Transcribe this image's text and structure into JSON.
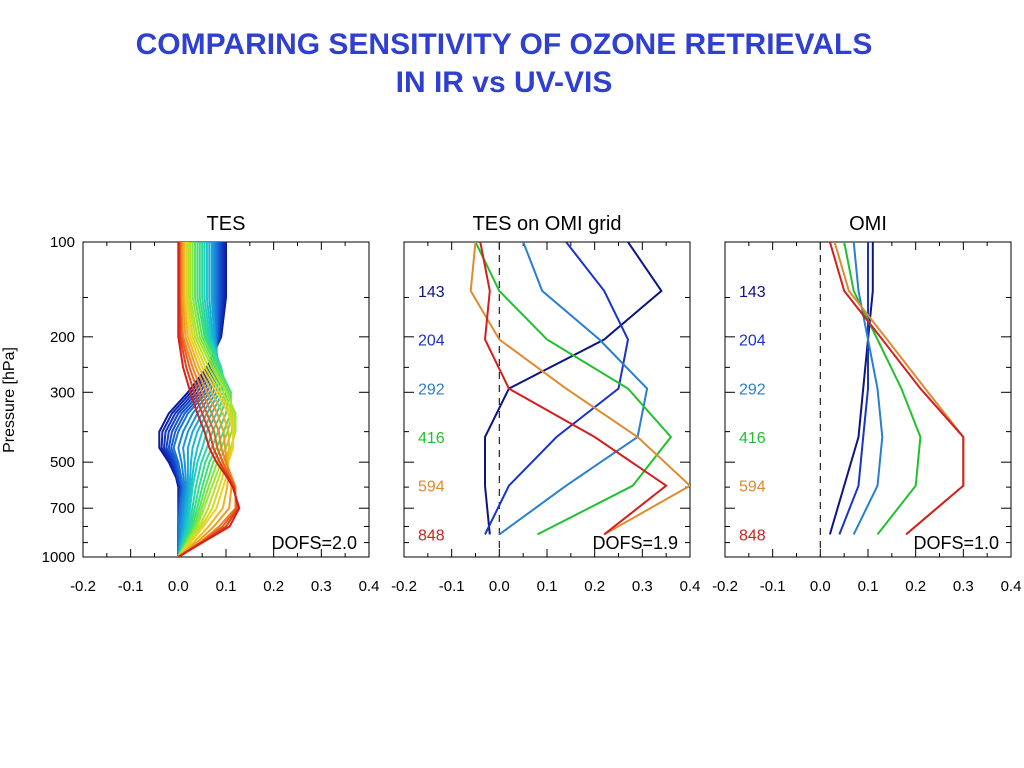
{
  "slide": {
    "title_line1": "COMPARING SENSITIVITY OF OZONE RETRIEVALS",
    "title_line2": "IN IR vs UV-VIS",
    "title_color": "#2f3fd0"
  },
  "ylabel": "Pressure [hPa]",
  "y_tick_labels": [
    "100",
    "200",
    "300",
    "500",
    "700",
    "1000"
  ],
  "chart_data": [
    {
      "type": "line",
      "title": "TES",
      "xlabel": "",
      "ylabel": "Pressure [hPa]",
      "xlim": [
        -0.2,
        0.4
      ],
      "ylim": [
        1000,
        100
      ],
      "y_scale": "log",
      "x_ticks": [
        -0.2,
        -0.1,
        0.0,
        0.1,
        0.2,
        0.3,
        0.4
      ],
      "x_tick_labels": [
        "-0.2",
        "-0.1",
        "0.0",
        "0.1",
        "0.2",
        "0.3",
        "0.4"
      ],
      "y_ticks": [
        100,
        200,
        300,
        500,
        700,
        1000
      ],
      "annotation": "DOFS=2.0",
      "colormap": "rainbow: blue (top levels) to red (surface levels)",
      "series": [
        {
          "color": "#0a1aa0",
          "points": [
            [
              0.1,
              100
            ],
            [
              0.1,
              150
            ],
            [
              0.09,
              200
            ],
            [
              0.06,
              250
            ],
            [
              0.02,
              300
            ],
            [
              -0.02,
              350
            ],
            [
              -0.04,
              400
            ],
            [
              -0.04,
              450
            ],
            [
              -0.02,
              500
            ],
            [
              0.0,
              580
            ],
            [
              0.0,
              700
            ],
            [
              0.0,
              850
            ],
            [
              0.0,
              1000
            ]
          ]
        },
        {
          "color": "#1540c8",
          "points": [
            [
              0.09,
              100
            ],
            [
              0.09,
              150
            ],
            [
              0.085,
              200
            ],
            [
              0.07,
              250
            ],
            [
              0.04,
              300
            ],
            [
              0.0,
              350
            ],
            [
              -0.02,
              400
            ],
            [
              -0.025,
              450
            ],
            [
              -0.01,
              500
            ],
            [
              0.005,
              600
            ],
            [
              0.0,
              750
            ],
            [
              0.0,
              1000
            ]
          ]
        },
        {
          "color": "#1a75d8",
          "points": [
            [
              0.08,
              100
            ],
            [
              0.08,
              150
            ],
            [
              0.08,
              200
            ],
            [
              0.08,
              250
            ],
            [
              0.06,
              300
            ],
            [
              0.02,
              350
            ],
            [
              0.0,
              400
            ],
            [
              -0.01,
              450
            ],
            [
              0.0,
              500
            ],
            [
              0.01,
              600
            ],
            [
              0.0,
              780
            ],
            [
              0.0,
              1000
            ]
          ]
        },
        {
          "color": "#1aa8d8",
          "points": [
            [
              0.07,
              100
            ],
            [
              0.07,
              150
            ],
            [
              0.075,
              200
            ],
            [
              0.085,
              250
            ],
            [
              0.08,
              300
            ],
            [
              0.05,
              350
            ],
            [
              0.03,
              400
            ],
            [
              0.02,
              450
            ],
            [
              0.02,
              500
            ],
            [
              0.02,
              600
            ],
            [
              0.01,
              800
            ],
            [
              0.0,
              1000
            ]
          ]
        },
        {
          "color": "#20d0c0",
          "points": [
            [
              0.055,
              100
            ],
            [
              0.055,
              150
            ],
            [
              0.065,
              200
            ],
            [
              0.09,
              250
            ],
            [
              0.1,
              300
            ],
            [
              0.08,
              350
            ],
            [
              0.06,
              400
            ],
            [
              0.05,
              450
            ],
            [
              0.04,
              500
            ],
            [
              0.03,
              600
            ],
            [
              0.02,
              800
            ],
            [
              0.0,
              1000
            ]
          ]
        },
        {
          "color": "#40e070",
          "points": [
            [
              0.04,
              100
            ],
            [
              0.04,
              150
            ],
            [
              0.055,
              200
            ],
            [
              0.085,
              250
            ],
            [
              0.11,
              300
            ],
            [
              0.11,
              350
            ],
            [
              0.095,
              400
            ],
            [
              0.08,
              450
            ],
            [
              0.065,
              500
            ],
            [
              0.05,
              600
            ],
            [
              0.03,
              800
            ],
            [
              0.0,
              1000
            ]
          ]
        },
        {
          "color": "#a0e830",
          "points": [
            [
              0.025,
              100
            ],
            [
              0.025,
              150
            ],
            [
              0.04,
              200
            ],
            [
              0.07,
              250
            ],
            [
              0.1,
              300
            ],
            [
              0.12,
              350
            ],
            [
              0.12,
              400
            ],
            [
              0.11,
              450
            ],
            [
              0.09,
              500
            ],
            [
              0.07,
              600
            ],
            [
              0.04,
              800
            ],
            [
              0.0,
              1000
            ]
          ]
        },
        {
          "color": "#f0d020",
          "points": [
            [
              0.015,
              100
            ],
            [
              0.015,
              150
            ],
            [
              0.025,
              200
            ],
            [
              0.05,
              250
            ],
            [
              0.08,
              300
            ],
            [
              0.105,
              350
            ],
            [
              0.115,
              400
            ],
            [
              0.115,
              450
            ],
            [
              0.105,
              500
            ],
            [
              0.1,
              560
            ],
            [
              0.08,
              700
            ],
            [
              0.04,
              850
            ],
            [
              0.0,
              1000
            ]
          ]
        },
        {
          "color": "#f08020",
          "points": [
            [
              0.005,
              100
            ],
            [
              0.005,
              150
            ],
            [
              0.01,
              200
            ],
            [
              0.03,
              250
            ],
            [
              0.05,
              300
            ],
            [
              0.07,
              350
            ],
            [
              0.085,
              400
            ],
            [
              0.09,
              450
            ],
            [
              0.1,
              500
            ],
            [
              0.12,
              600
            ],
            [
              0.12,
              700
            ],
            [
              0.07,
              850
            ],
            [
              0.0,
              1000
            ]
          ]
        },
        {
          "color": "#d82018",
          "points": [
            [
              0.0,
              100
            ],
            [
              0.0,
              150
            ],
            [
              0.0,
              200
            ],
            [
              0.01,
              250
            ],
            [
              0.025,
              300
            ],
            [
              0.04,
              350
            ],
            [
              0.055,
              400
            ],
            [
              0.065,
              450
            ],
            [
              0.08,
              500
            ],
            [
              0.11,
              580
            ],
            [
              0.13,
              680
            ],
            [
              0.12,
              780
            ],
            [
              0.05,
              900
            ],
            [
              0.0,
              1000
            ]
          ]
        }
      ]
    },
    {
      "type": "line",
      "title": "TES on OMI grid",
      "xlabel": "",
      "xlim": [
        -0.2,
        0.4
      ],
      "ylim": [
        1000,
        100
      ],
      "y_scale": "log",
      "x_ticks": [
        -0.2,
        -0.1,
        0.0,
        0.1,
        0.2,
        0.3,
        0.4
      ],
      "x_tick_labels": [
        "-0.2",
        "-0.1",
        "0.0",
        "0.1",
        "0.2",
        "0.3",
        "0.4"
      ],
      "y_ticks": [
        100,
        200,
        300,
        500,
        700,
        1000
      ],
      "annotation": "DOFS=1.9",
      "zero_line": "dashed",
      "level_labels": [
        "143",
        "204",
        "292",
        "416",
        "594",
        "848"
      ],
      "level_label_pressures": [
        143,
        204,
        292,
        416,
        594,
        848
      ],
      "series": [
        {
          "name": "143",
          "color": "#0d1580",
          "points": [
            [
              0.27,
              100
            ],
            [
              0.34,
              143
            ],
            [
              0.22,
              204
            ],
            [
              0.02,
              292
            ],
            [
              -0.03,
              416
            ],
            [
              -0.03,
              594
            ],
            [
              -0.02,
              848
            ]
          ]
        },
        {
          "name": "204",
          "color": "#1a33c8",
          "points": [
            [
              0.14,
              100
            ],
            [
              0.22,
              143
            ],
            [
              0.27,
              204
            ],
            [
              0.25,
              292
            ],
            [
              0.12,
              416
            ],
            [
              0.02,
              594
            ],
            [
              -0.03,
              848
            ]
          ]
        },
        {
          "name": "292",
          "color": "#2a7ed0",
          "points": [
            [
              0.05,
              100
            ],
            [
              0.09,
              143
            ],
            [
              0.21,
              204
            ],
            [
              0.31,
              292
            ],
            [
              0.29,
              416
            ],
            [
              0.14,
              594
            ],
            [
              0.0,
              848
            ]
          ]
        },
        {
          "name": "416",
          "color": "#22c030",
          "points": [
            [
              -0.05,
              100
            ],
            [
              0.0,
              143
            ],
            [
              0.1,
              204
            ],
            [
              0.27,
              292
            ],
            [
              0.36,
              416
            ],
            [
              0.28,
              594
            ],
            [
              0.08,
              848
            ]
          ]
        },
        {
          "name": "594",
          "color": "#e08a30",
          "points": [
            [
              -0.05,
              100
            ],
            [
              -0.06,
              143
            ],
            [
              0.0,
              204
            ],
            [
              0.14,
              292
            ],
            [
              0.29,
              416
            ],
            [
              0.4,
              594
            ],
            [
              0.22,
              848
            ]
          ]
        },
        {
          "name": "848",
          "color": "#d02020",
          "points": [
            [
              -0.04,
              100
            ],
            [
              -0.02,
              143
            ],
            [
              -0.03,
              204
            ],
            [
              0.02,
              292
            ],
            [
              0.2,
              416
            ],
            [
              0.35,
              594
            ],
            [
              0.22,
              848
            ]
          ]
        }
      ]
    },
    {
      "type": "line",
      "title": "OMI",
      "xlabel": "",
      "xlim": [
        -0.2,
        0.4
      ],
      "ylim": [
        1000,
        100
      ],
      "y_scale": "log",
      "x_ticks": [
        -0.2,
        -0.1,
        0.0,
        0.1,
        0.2,
        0.3,
        0.4
      ],
      "x_tick_labels": [
        "-0.2",
        "-0.1",
        "0.0",
        "0.1",
        "0.2",
        "0.3",
        "0.4"
      ],
      "y_ticks": [
        100,
        200,
        300,
        500,
        700,
        1000
      ],
      "annotation": "DOFS=1.0",
      "zero_line": "dashed",
      "level_labels": [
        "143",
        "204",
        "292",
        "416",
        "594",
        "848"
      ],
      "level_label_pressures": [
        143,
        204,
        292,
        416,
        594,
        848
      ],
      "series": [
        {
          "name": "143",
          "color": "#0d1580",
          "points": [
            [
              0.11,
              100
            ],
            [
              0.11,
              143
            ],
            [
              0.1,
              204
            ],
            [
              0.09,
              292
            ],
            [
              0.08,
              416
            ],
            [
              0.05,
              594
            ],
            [
              0.02,
              848
            ]
          ]
        },
        {
          "name": "204",
          "color": "#1a33c8",
          "points": [
            [
              0.1,
              100
            ],
            [
              0.1,
              143
            ],
            [
              0.1,
              204
            ],
            [
              0.1,
              292
            ],
            [
              0.09,
              416
            ],
            [
              0.08,
              594
            ],
            [
              0.04,
              848
            ]
          ]
        },
        {
          "name": "292",
          "color": "#2a7ed0",
          "points": [
            [
              0.07,
              100
            ],
            [
              0.08,
              143
            ],
            [
              0.1,
              204
            ],
            [
              0.12,
              292
            ],
            [
              0.13,
              416
            ],
            [
              0.12,
              594
            ],
            [
              0.07,
              848
            ]
          ]
        },
        {
          "name": "416",
          "color": "#22c030",
          "points": [
            [
              0.05,
              100
            ],
            [
              0.07,
              143
            ],
            [
              0.12,
              204
            ],
            [
              0.17,
              292
            ],
            [
              0.21,
              416
            ],
            [
              0.2,
              594
            ],
            [
              0.12,
              848
            ]
          ]
        },
        {
          "name": "594",
          "color": "#e08a30",
          "points": [
            [
              0.03,
              100
            ],
            [
              0.06,
              143
            ],
            [
              0.14,
              204
            ],
            [
              0.22,
              292
            ],
            [
              0.3,
              416
            ],
            [
              0.3,
              594
            ],
            [
              0.18,
              848
            ]
          ]
        },
        {
          "name": "848",
          "color": "#d02020",
          "points": [
            [
              0.02,
              100
            ],
            [
              0.05,
              143
            ],
            [
              0.13,
              204
            ],
            [
              0.21,
              292
            ],
            [
              0.3,
              416
            ],
            [
              0.3,
              594
            ],
            [
              0.18,
              848
            ]
          ]
        }
      ]
    }
  ]
}
